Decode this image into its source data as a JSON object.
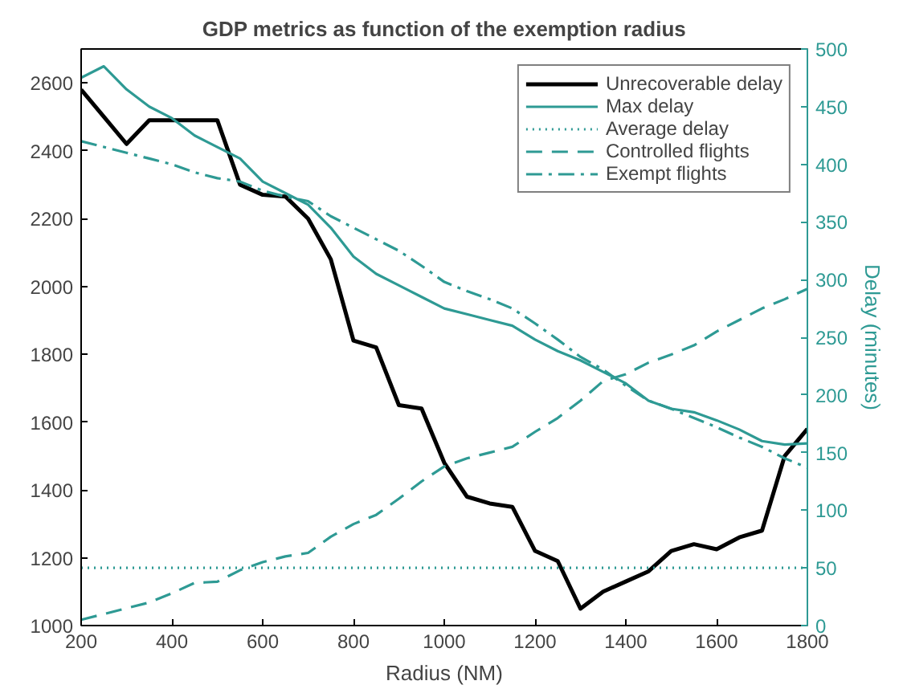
{
  "chart_data": {
    "type": "line",
    "title": "GDP metrics as function of the exemption radius",
    "xlabel": "Radius (NM)",
    "y2label": "Delay (minutes)",
    "x": [
      200,
      250,
      300,
      350,
      400,
      450,
      500,
      550,
      600,
      650,
      700,
      750,
      800,
      850,
      900,
      950,
      1000,
      1050,
      1100,
      1150,
      1200,
      1250,
      1300,
      1350,
      1400,
      1450,
      1500,
      1550,
      1600,
      1650,
      1700,
      1750,
      1800
    ],
    "xlim": [
      200,
      1800
    ],
    "xticks": [
      200,
      400,
      600,
      800,
      1000,
      1200,
      1400,
      1600,
      1800
    ],
    "ylim": [
      1000,
      2700
    ],
    "yticks": [
      1000,
      1200,
      1400,
      1600,
      1800,
      2000,
      2200,
      2400,
      2600
    ],
    "y2lim": [
      0,
      500
    ],
    "y2ticks": [
      0,
      50,
      100,
      150,
      200,
      250,
      300,
      350,
      400,
      450,
      500
    ],
    "grid": false,
    "legend": "top right",
    "series": [
      {
        "name": "Unrecoverable delay",
        "color": "#000000",
        "line_style": "solid",
        "values": [
          2580,
          2500,
          2420,
          2490,
          2490,
          2490,
          2490,
          2300,
          2270,
          2265,
          2200,
          2080,
          1840,
          1820,
          1650,
          1640,
          1480,
          1380,
          1360,
          1350,
          1220,
          1190,
          1050,
          1100,
          1130,
          1160,
          1220,
          1240,
          1225,
          1260,
          1280,
          1500,
          1580
        ]
      },
      {
        "name": "Max delay",
        "color": "#2e9a94",
        "axis": "y2",
        "line_style": "solid",
        "values": [
          475,
          485,
          465,
          450,
          440,
          425,
          415,
          405,
          385,
          375,
          365,
          345,
          320,
          305,
          295,
          285,
          275,
          270,
          265,
          260,
          248,
          238,
          230,
          220,
          210,
          195,
          188,
          185,
          178,
          170,
          160,
          157,
          158
        ]
      },
      {
        "name": "Average delay",
        "color": "#2e9a94",
        "axis": "y2",
        "line_style": "dotted",
        "values": [
          50,
          50,
          50,
          50,
          50,
          50,
          50,
          50,
          50,
          50,
          50,
          50,
          50,
          50,
          50,
          50,
          50,
          50,
          50,
          50,
          50,
          50,
          50,
          50,
          50,
          50,
          50,
          50,
          50,
          50,
          50,
          50,
          50
        ]
      },
      {
        "name": "Controlled flights",
        "color": "#2e9a94",
        "axis": "y2",
        "line_style": "dashed",
        "values": [
          5,
          10,
          15,
          20,
          28,
          37,
          38,
          48,
          55,
          60,
          63,
          77,
          88,
          96,
          110,
          125,
          138,
          145,
          150,
          155,
          168,
          180,
          195,
          212,
          218,
          228,
          235,
          243,
          255,
          265,
          275,
          283,
          292
        ]
      },
      {
        "name": "Exempt flights",
        "color": "#2e9a94",
        "axis": "y2",
        "line_style": "dashdot",
        "values": [
          420,
          415,
          410,
          405,
          400,
          393,
          388,
          385,
          377,
          372,
          368,
          355,
          345,
          335,
          325,
          312,
          298,
          290,
          283,
          275,
          262,
          248,
          233,
          222,
          208,
          195,
          188,
          180,
          172,
          163,
          155,
          145,
          137
        ]
      }
    ]
  }
}
